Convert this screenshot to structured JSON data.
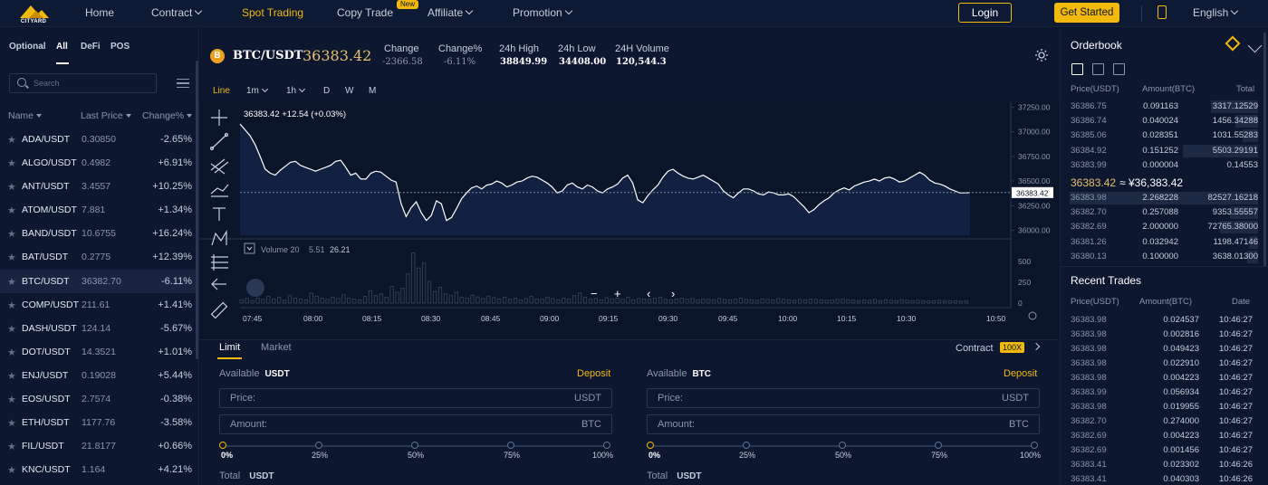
{
  "nav": {
    "logo": "CITYARD",
    "items": [
      {
        "label": "Home",
        "has_menu": false
      },
      {
        "label": "Contract",
        "has_menu": true
      },
      {
        "label": "Spot Trading",
        "has_menu": false
      },
      {
        "label": "Copy Trade",
        "has_menu": false
      },
      {
        "label": "Affiliate",
        "has_menu": true
      },
      {
        "label": "Promotion",
        "has_menu": true
      }
    ],
    "active": "Spot Trading",
    "new_badge": "New",
    "login": "Login",
    "get_started": "Get Started",
    "language": "English"
  },
  "market": {
    "tabs": [
      "Optional",
      "All",
      "DeFi",
      "POS"
    ],
    "active_tab": "All",
    "search_placeholder": "Search",
    "columns": {
      "name": "Name",
      "price": "Last Price",
      "change": "Change%"
    },
    "coins": [
      {
        "name": "ADA/USDT",
        "price": "0.30850",
        "change": "-2.65%"
      },
      {
        "name": "ALGO/USDT",
        "price": "0.4982",
        "change": "+6.91%"
      },
      {
        "name": "ANT/USDT",
        "price": "3.4557",
        "change": "+10.25%"
      },
      {
        "name": "ATOM/USDT",
        "price": "7.881",
        "change": "+1.34%"
      },
      {
        "name": "BAND/USDT",
        "price": "10.6755",
        "change": "+16.24%"
      },
      {
        "name": "BAT/USDT",
        "price": "0.2775",
        "change": "+12.39%"
      },
      {
        "name": "BTC/USDT",
        "price": "36382.70",
        "change": "-6.11%",
        "selected": true
      },
      {
        "name": "COMP/USDT",
        "price": "211.61",
        "change": "+1.41%"
      },
      {
        "name": "DASH/USDT",
        "price": "124.14",
        "change": "-5.67%"
      },
      {
        "name": "DOT/USDT",
        "price": "14.3521",
        "change": "+1.01%"
      },
      {
        "name": "ENJ/USDT",
        "price": "0.19028",
        "change": "+5.44%"
      },
      {
        "name": "EOS/USDT",
        "price": "2.7574",
        "change": "-0.38%"
      },
      {
        "name": "ETH/USDT",
        "price": "1177.76",
        "change": "-3.58%"
      },
      {
        "name": "FIL/USDT",
        "price": "21.8177",
        "change": "+0.66%"
      },
      {
        "name": "KNC/USDT",
        "price": "1.164",
        "change": "+4.21%"
      }
    ]
  },
  "ticker": {
    "icon": "B",
    "pair": "BTC/USDT",
    "last": "36383.42",
    "stats": [
      {
        "label": "Change",
        "value": "-2366.58",
        "neg": true
      },
      {
        "label": "Change%",
        "value": "-6.11%",
        "neg": true
      },
      {
        "label": "24h High",
        "value": "38849.99"
      },
      {
        "label": "24h Low",
        "value": "34408.00"
      },
      {
        "label": "24H Volume",
        "value": "120,544.3"
      }
    ]
  },
  "chart": {
    "intervals": [
      {
        "label": "Line",
        "active": true
      },
      {
        "label": "1m",
        "menu": true
      },
      {
        "label": "1h",
        "menu": true
      },
      {
        "label": "D"
      },
      {
        "label": "W"
      },
      {
        "label": "M"
      }
    ],
    "header": "36383.42  +12.54 (+0.03%)",
    "volume_label": "Volume 20",
    "volume_vals": [
      "5.51",
      "26.21"
    ],
    "price_axis": [
      "37250.00",
      "37000.00",
      "36750.00",
      "36500.00",
      "36250.00",
      "36000.00"
    ],
    "current_price_tag": "36383.42",
    "volume_axis": [
      "500",
      "250",
      "0"
    ],
    "time_axis": [
      "07:45",
      "08:00",
      "08:15",
      "08:30",
      "08:45",
      "09:00",
      "09:15",
      "09:30",
      "09:45",
      "10:00",
      "10:15",
      "10:30",
      "10:50"
    ],
    "zoom_out": "−",
    "zoom_in": "+",
    "prev": "‹",
    "next": "›"
  },
  "chart_data": {
    "type": "line",
    "x_range": [
      "07:42",
      "10:50"
    ],
    "ylim": [
      35950,
      37300
    ],
    "x_ticks": [
      "07:45",
      "08:00",
      "08:15",
      "08:30",
      "08:45",
      "09:00",
      "09:15",
      "09:30",
      "09:45",
      "10:00",
      "10:15",
      "10:30",
      "10:50"
    ],
    "y_ticks": [
      37250,
      37000,
      36750,
      36500,
      36250,
      36000
    ],
    "series": [
      {
        "values": [
          37080,
          37020,
          36960,
          36870,
          36750,
          36620,
          36580,
          36560,
          36610,
          36650,
          36690,
          36700,
          36660,
          36640,
          36620,
          36600,
          36620,
          36640,
          36660,
          36700,
          36710,
          36640,
          36560,
          36580,
          36520,
          36520,
          36580,
          36600,
          36590,
          36550,
          36510,
          36490,
          36270,
          36140,
          36230,
          36290,
          36180,
          36100,
          36150,
          36300,
          36270,
          36100,
          36130,
          36220,
          36320,
          36380,
          36430,
          36450,
          36420,
          36460,
          36470,
          36500,
          36480,
          36440,
          36460,
          36490,
          36500,
          36530,
          36550,
          36540,
          36510,
          36480,
          36440,
          36380,
          36400,
          36460,
          36480,
          36440,
          36420,
          36460,
          36440,
          36400,
          36380,
          36420,
          36440,
          36470,
          36530,
          36560,
          36480,
          36310,
          36280,
          36350,
          36410,
          36460,
          36540,
          36600,
          36620,
          36580,
          36550,
          36530,
          36520,
          36540,
          36560,
          36530,
          36500,
          36470,
          36400,
          36360,
          36330,
          36380,
          36420,
          36420,
          36400,
          36370,
          36360,
          36390,
          36380,
          36360,
          36360,
          36370,
          36340,
          36290,
          36240,
          36180,
          36210,
          36260,
          36300,
          36330,
          36380,
          36410,
          36430,
          36410,
          36450,
          36470,
          36490,
          36500,
          36520,
          36500,
          36530,
          36540,
          36520,
          36490,
          36500,
          36530,
          36560,
          36590,
          36560,
          36510,
          36480,
          36470,
          36450,
          36420,
          36400,
          36380,
          36380,
          36383
        ]
      }
    ],
    "volume": [
      40,
      55,
      30,
      60,
      45,
      80,
      50,
      70,
      35,
      90,
      60,
      50,
      40,
      120,
      80,
      60,
      45,
      70,
      55,
      100,
      60,
      50,
      40,
      80,
      150,
      90,
      110,
      70,
      200,
      130,
      180,
      350,
      600,
      420,
      480,
      260,
      140,
      190,
      110,
      90,
      130,
      70,
      60,
      95,
      75,
      55,
      85,
      65,
      50,
      70,
      45,
      60,
      40,
      55,
      80,
      50,
      45,
      70,
      55,
      40,
      60,
      50,
      90,
      120,
      70,
      45,
      55,
      40,
      65,
      50,
      60,
      45,
      70,
      40,
      55,
      50,
      45,
      60,
      70,
      45,
      40,
      50,
      60,
      45,
      55,
      40,
      50,
      45,
      40,
      55,
      45,
      40,
      50,
      60,
      45,
      40,
      35,
      50,
      45,
      40,
      55,
      45,
      40,
      35,
      45,
      40,
      50,
      45,
      40,
      35,
      40,
      45,
      50,
      40,
      35,
      30,
      40,
      35,
      45,
      30,
      40,
      35,
      30,
      40,
      35,
      30,
      35,
      30,
      25,
      30,
      35,
      30,
      25,
      30,
      25,
      30
    ]
  },
  "order": {
    "tabs": [
      "Limit",
      "Market"
    ],
    "active_tab": "Limit",
    "contract": "Contract",
    "leverage": "100X",
    "buy": {
      "available": "Available",
      "asset": "USDT",
      "deposit": "Deposit",
      "price_label": "Price:",
      "price_unit": "USDT",
      "amount_label": "Amount:",
      "amount_unit": "BTC",
      "total_label": "Total",
      "total_unit": "USDT"
    },
    "sell": {
      "available": "Available",
      "asset": "BTC",
      "deposit": "Deposit",
      "price_label": "Price:",
      "price_unit": "USDT",
      "amount_label": "Amount:",
      "amount_unit": "BTC",
      "total_label": "Total",
      "total_unit": "USDT"
    },
    "percent_marks": [
      "0%",
      "25%",
      "50%",
      "75%",
      "100%"
    ]
  },
  "orderbook": {
    "title": "Orderbook",
    "columns": {
      "price": "Price(USDT)",
      "amount": "Amount(BTC)",
      "total": "Total"
    },
    "asks": [
      {
        "price": "36386.75",
        "amount": "0.091163",
        "total": "3317.12529",
        "depth": 0.25
      },
      {
        "price": "36386.74",
        "amount": "0.040024",
        "total": "1456.34288",
        "depth": 0.12
      },
      {
        "price": "36385.06",
        "amount": "0.028351",
        "total": "1031.55283",
        "depth": 0.08
      },
      {
        "price": "36384.92",
        "amount": "0.151252",
        "total": "5503.29191",
        "depth": 0.4
      },
      {
        "price": "36383.99",
        "amount": "0.000004",
        "total": "0.14553",
        "depth": 0.0
      }
    ],
    "mid_price": "36383.42",
    "mid_fiat": "≈ ¥36,383.42",
    "bids": [
      {
        "price": "36383.98",
        "amount": "2.268228",
        "total": "82527.16218",
        "depth": 1.0
      },
      {
        "price": "36382.70",
        "amount": "0.257088",
        "total": "9353.55557",
        "depth": 0.15
      },
      {
        "price": "36382.69",
        "amount": "2.000000",
        "total": "72765.38000",
        "depth": 0.2
      },
      {
        "price": "36381.26",
        "amount": "0.032942",
        "total": "1198.47146",
        "depth": 0.05
      },
      {
        "price": "36380.13",
        "amount": "0.100000",
        "total": "3638.01300",
        "depth": 0.06
      }
    ]
  },
  "trades": {
    "title": "Recent Trades",
    "columns": {
      "price": "Price(USDT)",
      "amount": "Amount(BTC)",
      "time": "Date"
    },
    "rows": [
      {
        "price": "36383.98",
        "amount": "0.024537",
        "time": "10:46:27"
      },
      {
        "price": "36383.98",
        "amount": "0.002816",
        "time": "10:46:27"
      },
      {
        "price": "36383.98",
        "amount": "0.049423",
        "time": "10:46:27"
      },
      {
        "price": "36383.98",
        "amount": "0.022910",
        "time": "10:46:27"
      },
      {
        "price": "36383.98",
        "amount": "0.004223",
        "time": "10:46:27"
      },
      {
        "price": "36383.99",
        "amount": "0.056934",
        "time": "10:46:27"
      },
      {
        "price": "36383.98",
        "amount": "0.019955",
        "time": "10:46:27"
      },
      {
        "price": "36382.70",
        "amount": "0.274000",
        "time": "10:46:27"
      },
      {
        "price": "36382.69",
        "amount": "0.004223",
        "time": "10:46:27"
      },
      {
        "price": "36382.69",
        "amount": "0.001456",
        "time": "10:46:27"
      },
      {
        "price": "36383.41",
        "amount": "0.023302",
        "time": "10:46:26"
      },
      {
        "price": "36383.41",
        "amount": "0.040303",
        "time": "10:46:26"
      }
    ]
  },
  "colors": {
    "bg": "#0b1529",
    "panel": "#0d1730",
    "accent": "#f0b90b",
    "text": "#c7cfdd",
    "muted": "#8a97ad"
  }
}
